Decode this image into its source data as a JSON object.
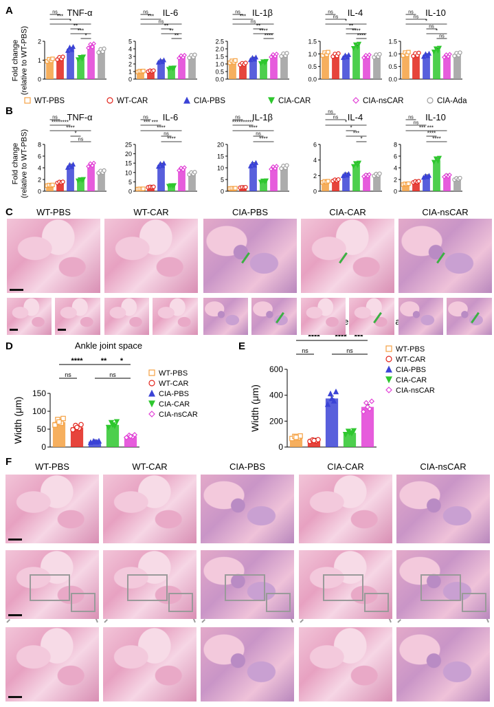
{
  "figure": {
    "panel_labels": [
      "A",
      "B",
      "C",
      "D",
      "E",
      "F"
    ],
    "y_axis_label_A": "Fold change\n(relative to WT-PBS)",
    "y_axis_label_B": "Fold change\n(relative to WT-PBS)",
    "groups": [
      "WT-PBS",
      "WT-CAR",
      "CIA-PBS",
      "CIA-CAR",
      "CIA-nsCAR",
      "CIA-Ada"
    ],
    "group_colors": [
      "#f5a142",
      "#e2231a",
      "#3b43d6",
      "#2ec72e",
      "#e23fd6",
      "#9e9e9e"
    ],
    "group_markers": [
      "square",
      "circle",
      "triangle-up",
      "triangle-down",
      "diamond",
      "circle"
    ],
    "histology_groups": [
      "WT-PBS",
      "WT-CAR",
      "CIA-PBS",
      "CIA-CAR",
      "CIA-nsCAR"
    ]
  },
  "chart_data": [
    {
      "panel": "A",
      "type": "bar",
      "title": "TNF-α",
      "categories": [
        "WT-PBS",
        "WT-CAR",
        "CIA-PBS",
        "CIA-CAR",
        "CIA-nsCAR",
        "CIA-Ada"
      ],
      "values": [
        1.0,
        1.1,
        1.6,
        1.1,
        1.75,
        1.5
      ],
      "ylim": [
        0,
        2
      ],
      "yticks": [
        "0",
        "1",
        "2"
      ],
      "significance": [
        "ns",
        "***",
        "*",
        "**",
        "***",
        "*"
      ]
    },
    {
      "panel": "A",
      "type": "bar",
      "title": "IL-6",
      "categories": [
        "WT-PBS",
        "WT-CAR",
        "CIA-PBS",
        "CIA-CAR",
        "CIA-nsCAR",
        "CIA-Ada"
      ],
      "values": [
        1.0,
        1.05,
        2.35,
        1.4,
        2.95,
        3.0
      ],
      "ylim": [
        0,
        5
      ],
      "yticks": [
        "0",
        "1",
        "2",
        "3",
        "4",
        "5"
      ],
      "significance": [
        "ns",
        "***",
        "ns",
        "**",
        "**",
        "**"
      ]
    },
    {
      "panel": "A",
      "type": "bar",
      "title": "IL-1β",
      "categories": [
        "WT-PBS",
        "WT-CAR",
        "CIA-PBS",
        "CIA-CAR",
        "CIA-nsCAR",
        "CIA-Ada"
      ],
      "values": [
        1.15,
        1.0,
        1.35,
        1.1,
        1.55,
        1.6
      ],
      "ylim": [
        0,
        2.5
      ],
      "yticks": [
        "0.0",
        "0.5",
        "1.0",
        "1.5",
        "2.0",
        "2.5"
      ],
      "significance": [
        "ns",
        "***",
        "ns",
        "**",
        "****",
        "****"
      ]
    },
    {
      "panel": "A",
      "type": "bar",
      "title": "IL-4",
      "categories": [
        "WT-PBS",
        "WT-CAR",
        "CIA-PBS",
        "CIA-CAR",
        "CIA-nsCAR",
        "CIA-Ada"
      ],
      "values": [
        1.0,
        0.95,
        0.9,
        1.3,
        0.9,
        0.92
      ],
      "ylim": [
        0,
        1.5
      ],
      "yticks": [
        "0.0",
        "0.5",
        "1.0",
        "1.5"
      ],
      "significance": [
        "ns",
        "ns",
        "*",
        "**",
        "****",
        "****"
      ]
    },
    {
      "panel": "A",
      "type": "bar",
      "title": "IL-10",
      "categories": [
        "WT-PBS",
        "WT-CAR",
        "CIA-PBS",
        "CIA-CAR",
        "CIA-nsCAR",
        "CIA-Ada"
      ],
      "values": [
        1.0,
        0.97,
        0.95,
        1.15,
        0.92,
        0.98
      ],
      "ylim": [
        0,
        1.5
      ],
      "yticks": [
        "0.0",
        "0.5",
        "1.0",
        "1.5"
      ],
      "significance": [
        "ns",
        "ns",
        "*",
        "ns",
        "*",
        "ns"
      ]
    },
    {
      "panel": "B",
      "type": "bar",
      "title": "TNF-α",
      "categories": [
        "WT-PBS",
        "WT-CAR",
        "CIA-PBS",
        "CIA-CAR",
        "CIA-nsCAR",
        "CIA-Ada"
      ],
      "values": [
        1.0,
        1.5,
        4.3,
        1.9,
        4.5,
        3.3
      ],
      "ylim": [
        0,
        8
      ],
      "yticks": [
        "0",
        "2",
        "4",
        "6",
        "8"
      ],
      "significance": [
        "ns",
        "********",
        "****",
        "*",
        "ns"
      ]
    },
    {
      "panel": "B",
      "type": "bar",
      "title": "IL-6",
      "categories": [
        "WT-PBS",
        "WT-CAR",
        "CIA-PBS",
        "CIA-CAR",
        "CIA-nsCAR",
        "CIA-Ada"
      ],
      "values": [
        1.2,
        2.2,
        14.0,
        2.9,
        11.8,
        9.5
      ],
      "ylim": [
        0,
        25
      ],
      "yticks": [
        "0",
        "5",
        "10",
        "15",
        "20",
        "25"
      ],
      "significance": [
        "ns",
        "*** ***",
        "****",
        "ns",
        "****"
      ]
    },
    {
      "panel": "B",
      "type": "bar",
      "title": "IL-1β",
      "categories": [
        "WT-PBS",
        "WT-CAR",
        "CIA-PBS",
        "CIA-CAR",
        "CIA-nsCAR",
        "CIA-Ada"
      ],
      "values": [
        1.2,
        1.6,
        11.4,
        4.2,
        10.0,
        10.3
      ],
      "ylim": [
        0,
        20
      ],
      "yticks": [
        "0",
        "5",
        "10",
        "15",
        "20"
      ],
      "significance": [
        "ns",
        "**********",
        "****",
        "ns",
        "****"
      ]
    },
    {
      "panel": "B",
      "type": "bar",
      "title": "IL-4",
      "categories": [
        "WT-PBS",
        "WT-CAR",
        "CIA-PBS",
        "CIA-CAR",
        "CIA-nsCAR",
        "CIA-Ada"
      ],
      "values": [
        1.2,
        1.4,
        2.1,
        3.4,
        2.0,
        2.1
      ],
      "ylim": [
        0,
        6
      ],
      "yticks": [
        "0",
        "2",
        "4",
        "6"
      ],
      "significance": [
        "ns",
        "ns",
        "*",
        "*",
        "***",
        "*"
      ]
    },
    {
      "panel": "B",
      "type": "bar",
      "title": "IL-10",
      "categories": [
        "WT-PBS",
        "WT-CAR",
        "CIA-PBS",
        "CIA-CAR",
        "CIA-nsCAR",
        "CIA-Ada"
      ],
      "values": [
        1.2,
        1.6,
        2.5,
        5.3,
        2.6,
        2.1
      ],
      "ylim": [
        0,
        8
      ],
      "yticks": [
        "0",
        "2",
        "4",
        "6",
        "8"
      ],
      "significance": [
        "ns",
        "ns",
        "*** ***",
        "****",
        "****"
      ]
    },
    {
      "panel": "D",
      "type": "bar",
      "title": "Ankle joint space",
      "ylabel": "Width (μm)",
      "categories": [
        "WT-PBS",
        "WT-CAR",
        "CIA-PBS",
        "CIA-CAR",
        "CIA-nsCAR"
      ],
      "values": [
        70,
        55,
        15,
        62,
        30
      ],
      "ylim": [
        0,
        150
      ],
      "yticks": [
        "0",
        "50",
        "100",
        "150"
      ],
      "significance": [
        "****",
        "**",
        "*",
        "ns",
        "ns"
      ],
      "legend": [
        "WT-PBS",
        "WT-CAR",
        "CIA-PBS",
        "CIA-CAR",
        "CIA-nsCAR"
      ]
    },
    {
      "panel": "E",
      "type": "bar",
      "title": "Lateral fibers of ankle joint",
      "ylabel": "Width (μm)",
      "categories": [
        "WT-PBS",
        "WT-CAR",
        "CIA-PBS",
        "CIA-CAR",
        "CIA-nsCAR"
      ],
      "values": [
        75,
        50,
        375,
        110,
        310
      ],
      "ylim": [
        0,
        600
      ],
      "yticks": [
        "0",
        "200",
        "400",
        "600"
      ],
      "significance": [
        "****",
        "****",
        "***",
        "ns",
        "ns"
      ],
      "legend": [
        "WT-PBS",
        "WT-CAR",
        "CIA-PBS",
        "CIA-CAR",
        "CIA-nsCAR"
      ]
    }
  ]
}
